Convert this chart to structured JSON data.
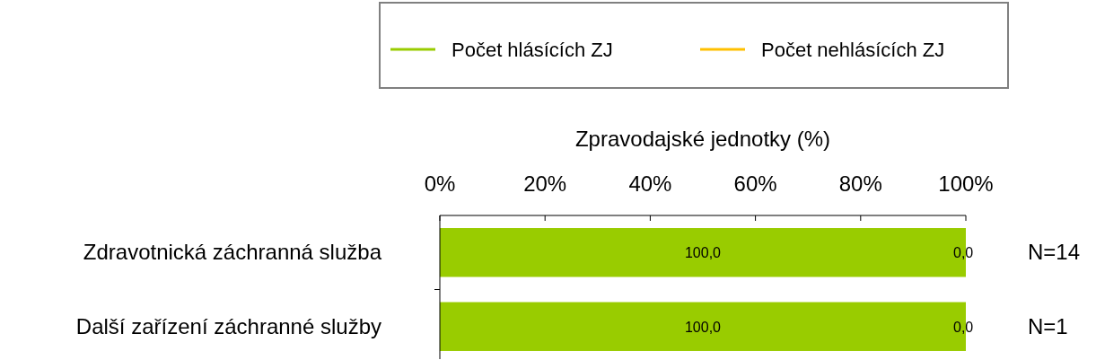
{
  "chart_data": {
    "type": "bar",
    "orientation": "horizontal",
    "stacked": true,
    "xlabel": "Zpravodajské jednotky (%)",
    "categories": [
      "Zdravotnická záchranná služba",
      "Další zařízení záchranné služby"
    ],
    "series": [
      {
        "name": "Počet hlásících ZJ",
        "color": "#99cc00",
        "values": [
          100,
          100
        ],
        "value_labels": [
          "100,0",
          "100,0"
        ]
      },
      {
        "name": "Počet nehlásících ZJ",
        "color": "#ffc000",
        "values": [
          0,
          0
        ],
        "value_labels": [
          "0,0",
          "0,0"
        ]
      }
    ],
    "xlim": [
      0,
      100
    ],
    "xticks": [
      {
        "value": 0,
        "label": "0%"
      },
      {
        "value": 20,
        "label": "20%"
      },
      {
        "value": 40,
        "label": "40%"
      },
      {
        "value": 60,
        "label": "60%"
      },
      {
        "value": 80,
        "label": "80%"
      },
      {
        "value": 100,
        "label": "100%"
      }
    ],
    "annotations": [
      "N=14",
      "N=1"
    ],
    "legend": "top"
  }
}
